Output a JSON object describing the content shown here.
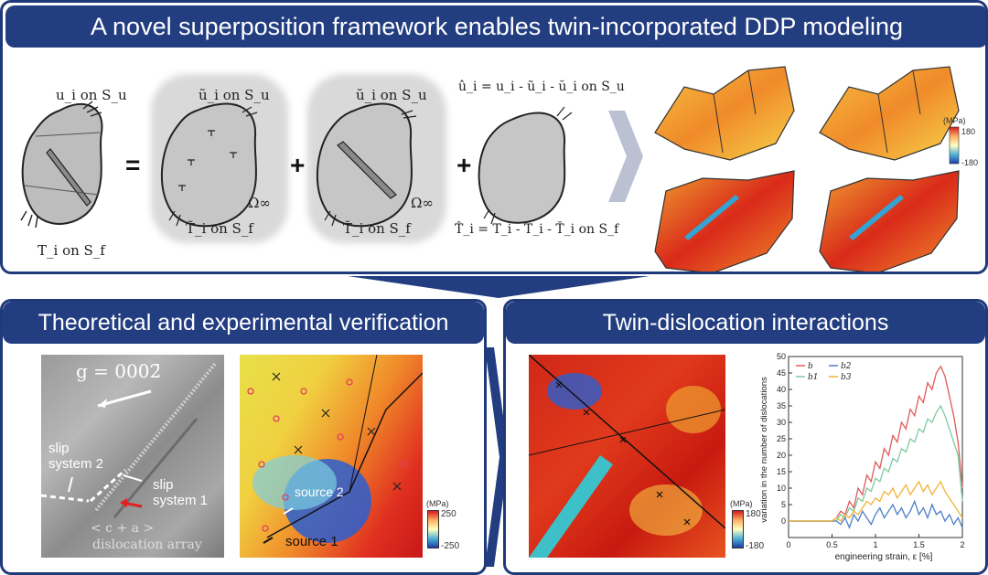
{
  "top_panel": {
    "title": "A novel superposition framework enables twin-incorporated DDP modeling",
    "eq_equals": "=",
    "eq_plus1": "+",
    "eq_plus2": "+",
    "blob1": {
      "top": "u_i  on  S_u",
      "bottom": "T_i  on  S_f"
    },
    "blob2": {
      "top": "ũ_i  on  S_u",
      "bottom": "T̃_i  on  S_f",
      "omega": "Ω∞"
    },
    "blob3": {
      "top": "ŭ_i  on  S_u",
      "bottom": "T̆_i  on  S_f",
      "omega": "Ω∞"
    },
    "blob4": {
      "top": "û_i = u_i - ũ_i - ŭ_i  on  S_u",
      "bottom": "T̂_i = T_i - T̃_i - T̆_i  on  S_f"
    },
    "colorbar": {
      "unit": "(MPa)",
      "max": "180",
      "min": "-180"
    }
  },
  "bottom_left": {
    "title": "Theoretical and experimental verification",
    "tem": {
      "g_vector": "g = 0002̄",
      "slip2": "slip\nsystem 2",
      "slip1": "slip\nsystem 1",
      "ca": "< c + a >",
      "array": "dislocation array"
    },
    "sim": {
      "source2": "source 2",
      "source1": "source 1"
    },
    "colorbar": {
      "unit": "(MPa)",
      "max": "250",
      "min": "-250"
    }
  },
  "bottom_right": {
    "title": "Twin-dislocation interactions",
    "colorbar": {
      "unit": "(MPa)",
      "max": "180",
      "min": "-180"
    }
  },
  "colors": {
    "navy": "#223d80",
    "gray_blob": "#c8c8c8",
    "series_b": "#e05a5a",
    "series_b1": "#7fc9a0",
    "series_b2": "#4a7fc9",
    "series_b3": "#f2b233"
  },
  "chart_data": {
    "type": "line",
    "xlabel": "engineering strain, ε [%]",
    "ylabel": "variation in the number of dislocations",
    "xlim": [
      0,
      2
    ],
    "ylim": [
      -5,
      50
    ],
    "xticks": [
      "0",
      "0.5",
      "1",
      "1.5",
      "2"
    ],
    "yticks": [
      "0",
      "5",
      "10",
      "15",
      "20",
      "25",
      "30",
      "35",
      "40",
      "45",
      "50"
    ],
    "legend_position": "top-left",
    "x": [
      0,
      0.5,
      0.55,
      0.6,
      0.65,
      0.7,
      0.75,
      0.8,
      0.85,
      0.9,
      0.95,
      1.0,
      1.05,
      1.1,
      1.15,
      1.2,
      1.25,
      1.3,
      1.35,
      1.4,
      1.45,
      1.5,
      1.55,
      1.6,
      1.65,
      1.7,
      1.75,
      1.8,
      1.85,
      1.9,
      1.95,
      2.0
    ],
    "series": [
      {
        "name": "b",
        "color": "#e05a5a",
        "values": [
          0,
          0,
          1,
          3,
          2,
          6,
          4,
          10,
          8,
          14,
          12,
          18,
          16,
          22,
          20,
          26,
          24,
          30,
          28,
          34,
          32,
          38,
          36,
          42,
          40,
          45,
          47,
          44,
          38,
          32,
          24,
          10
        ]
      },
      {
        "name": "b1",
        "color": "#7fc9a0",
        "values": [
          0,
          0,
          0,
          2,
          1,
          4,
          3,
          7,
          6,
          10,
          9,
          13,
          12,
          16,
          15,
          19,
          18,
          22,
          21,
          25,
          24,
          28,
          27,
          31,
          30,
          33,
          35,
          32,
          28,
          24,
          20,
          6
        ]
      },
      {
        "name": "b2",
        "color": "#4a7fc9",
        "values": [
          0,
          0,
          0,
          -1,
          1,
          -2,
          2,
          0,
          3,
          1,
          -1,
          2,
          4,
          1,
          3,
          5,
          2,
          4,
          1,
          3,
          6,
          2,
          4,
          1,
          5,
          2,
          3,
          0,
          2,
          -1,
          1,
          -2
        ]
      },
      {
        "name": "b3",
        "color": "#f2b233",
        "values": [
          0,
          0,
          1,
          0,
          2,
          1,
          3,
          2,
          4,
          6,
          5,
          7,
          6,
          9,
          8,
          10,
          7,
          9,
          11,
          8,
          10,
          12,
          9,
          11,
          8,
          10,
          12,
          9,
          7,
          5,
          3,
          1
        ]
      }
    ]
  }
}
